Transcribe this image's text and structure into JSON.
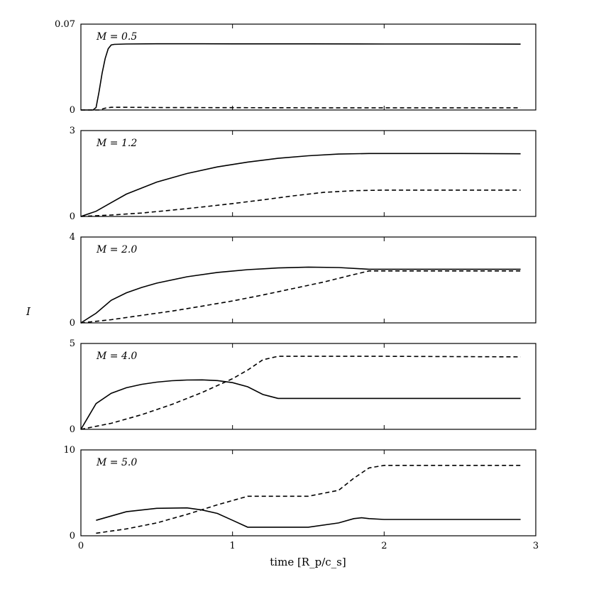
{
  "chart_data": {
    "type": "line",
    "xlabel": "time [R_p/c_s]",
    "ylabel": "I",
    "xlim": [
      0,
      3
    ],
    "x_ticks": [
      "0",
      "1",
      "2",
      "3"
    ],
    "grid": false,
    "legend": "none",
    "panels": [
      {
        "label": "M = 0.5",
        "ylim": [
          0,
          0.07
        ],
        "y_ticks": [
          "0",
          "0.07"
        ],
        "series": [
          {
            "style": "solid",
            "x": [
              0,
              0.08,
              0.1,
              0.12,
              0.14,
              0.16,
              0.18,
              0.2,
              0.22,
              0.3,
              0.5,
              0.8,
              1.0,
              1.5,
              2.0,
              2.5,
              2.9
            ],
            "y": [
              0,
              0,
              0.002,
              0.015,
              0.03,
              0.042,
              0.05,
              0.053,
              0.0535,
              0.0538,
              0.054,
              0.054,
              0.0539,
              0.0539,
              0.0538,
              0.0538,
              0.0537
            ]
          },
          {
            "style": "dashed",
            "x": [
              0,
              0.12,
              0.16,
              0.2,
              0.3,
              0.5,
              1.0,
              1.5,
              2.0,
              2.5,
              2.9
            ],
            "y": [
              0,
              0,
              0.0015,
              0.0022,
              0.0022,
              0.002,
              0.0019,
              0.0018,
              0.0018,
              0.0018,
              0.0018
            ]
          }
        ]
      },
      {
        "label": "M = 1.2",
        "ylim": [
          0,
          3
        ],
        "y_ticks": [
          "0",
          "3"
        ],
        "series": [
          {
            "style": "solid",
            "x": [
              0,
              0.1,
              0.2,
              0.3,
              0.5,
              0.7,
              0.9,
              1.1,
              1.3,
              1.5,
              1.7,
              1.9,
              2.1,
              2.5,
              2.9
            ],
            "y": [
              0,
              0.18,
              0.48,
              0.78,
              1.2,
              1.5,
              1.73,
              1.9,
              2.03,
              2.12,
              2.18,
              2.2,
              2.2,
              2.2,
              2.19
            ]
          },
          {
            "style": "dashed",
            "x": [
              0,
              0.2,
              0.4,
              0.6,
              0.8,
              1.0,
              1.2,
              1.4,
              1.6,
              1.8,
              2.0,
              2.4,
              2.9
            ],
            "y": [
              0,
              0.05,
              0.12,
              0.22,
              0.33,
              0.45,
              0.58,
              0.72,
              0.84,
              0.9,
              0.92,
              0.92,
              0.92
            ]
          }
        ]
      },
      {
        "label": "M = 2.0",
        "ylim": [
          0,
          4
        ],
        "y_ticks": [
          "0",
          "4"
        ],
        "series": [
          {
            "style": "solid",
            "x": [
              0,
              0.1,
              0.2,
              0.3,
              0.4,
              0.5,
              0.7,
              0.9,
              1.1,
              1.3,
              1.5,
              1.7,
              1.9,
              2.2,
              2.9
            ],
            "y": [
              0,
              0.45,
              1.05,
              1.4,
              1.65,
              1.85,
              2.15,
              2.35,
              2.48,
              2.56,
              2.6,
              2.58,
              2.5,
              2.5,
              2.5
            ]
          },
          {
            "style": "dashed",
            "x": [
              0,
              0.2,
              0.4,
              0.6,
              0.8,
              1.0,
              1.2,
              1.4,
              1.6,
              1.8,
              1.9,
              2.2,
              2.9
            ],
            "y": [
              0,
              0.15,
              0.35,
              0.55,
              0.78,
              1.02,
              1.3,
              1.6,
              1.9,
              2.25,
              2.42,
              2.42,
              2.42
            ]
          }
        ]
      },
      {
        "label": "M = 4.0",
        "ylim": [
          0,
          5
        ],
        "y_ticks": [
          "0",
          "5"
        ],
        "series": [
          {
            "style": "solid",
            "x": [
              0,
              0.1,
              0.2,
              0.3,
              0.4,
              0.5,
              0.6,
              0.7,
              0.8,
              0.9,
              1.0,
              1.1,
              1.2,
              1.3,
              2.0,
              2.9
            ],
            "y": [
              0,
              1.5,
              2.1,
              2.42,
              2.62,
              2.75,
              2.83,
              2.87,
              2.88,
              2.84,
              2.72,
              2.48,
              2.03,
              1.8,
              1.8,
              1.8
            ]
          },
          {
            "style": "dashed",
            "x": [
              0,
              0.2,
              0.4,
              0.6,
              0.8,
              1.0,
              1.1,
              1.2,
              1.3,
              1.5,
              2.0,
              2.9
            ],
            "y": [
              0,
              0.35,
              0.85,
              1.45,
              2.15,
              2.95,
              3.45,
              4.05,
              4.25,
              4.25,
              4.25,
              4.22
            ]
          }
        ]
      },
      {
        "label": "M = 5.0",
        "ylim": [
          0,
          10
        ],
        "y_ticks": [
          "0",
          "10"
        ],
        "series": [
          {
            "style": "solid",
            "x": [
              0.1,
              0.3,
              0.5,
              0.7,
              0.8,
              0.9,
              1.0,
              1.1,
              1.5,
              1.7,
              1.8,
              1.85,
              1.9,
              2.0,
              2.5,
              2.9
            ],
            "y": [
              1.8,
              2.8,
              3.2,
              3.25,
              3.0,
              2.6,
              1.8,
              1.0,
              1.0,
              1.5,
              2.0,
              2.1,
              2.0,
              1.9,
              1.9,
              1.9
            ]
          },
          {
            "style": "dashed",
            "x": [
              0.1,
              0.3,
              0.5,
              0.7,
              0.9,
              1.1,
              1.3,
              1.5,
              1.7,
              1.8,
              1.9,
              2.0,
              2.5,
              2.9
            ],
            "y": [
              0.3,
              0.8,
              1.5,
              2.5,
              3.6,
              4.6,
              4.6,
              4.6,
              5.3,
              6.7,
              7.9,
              8.2,
              8.2,
              8.2
            ]
          }
        ]
      }
    ]
  }
}
